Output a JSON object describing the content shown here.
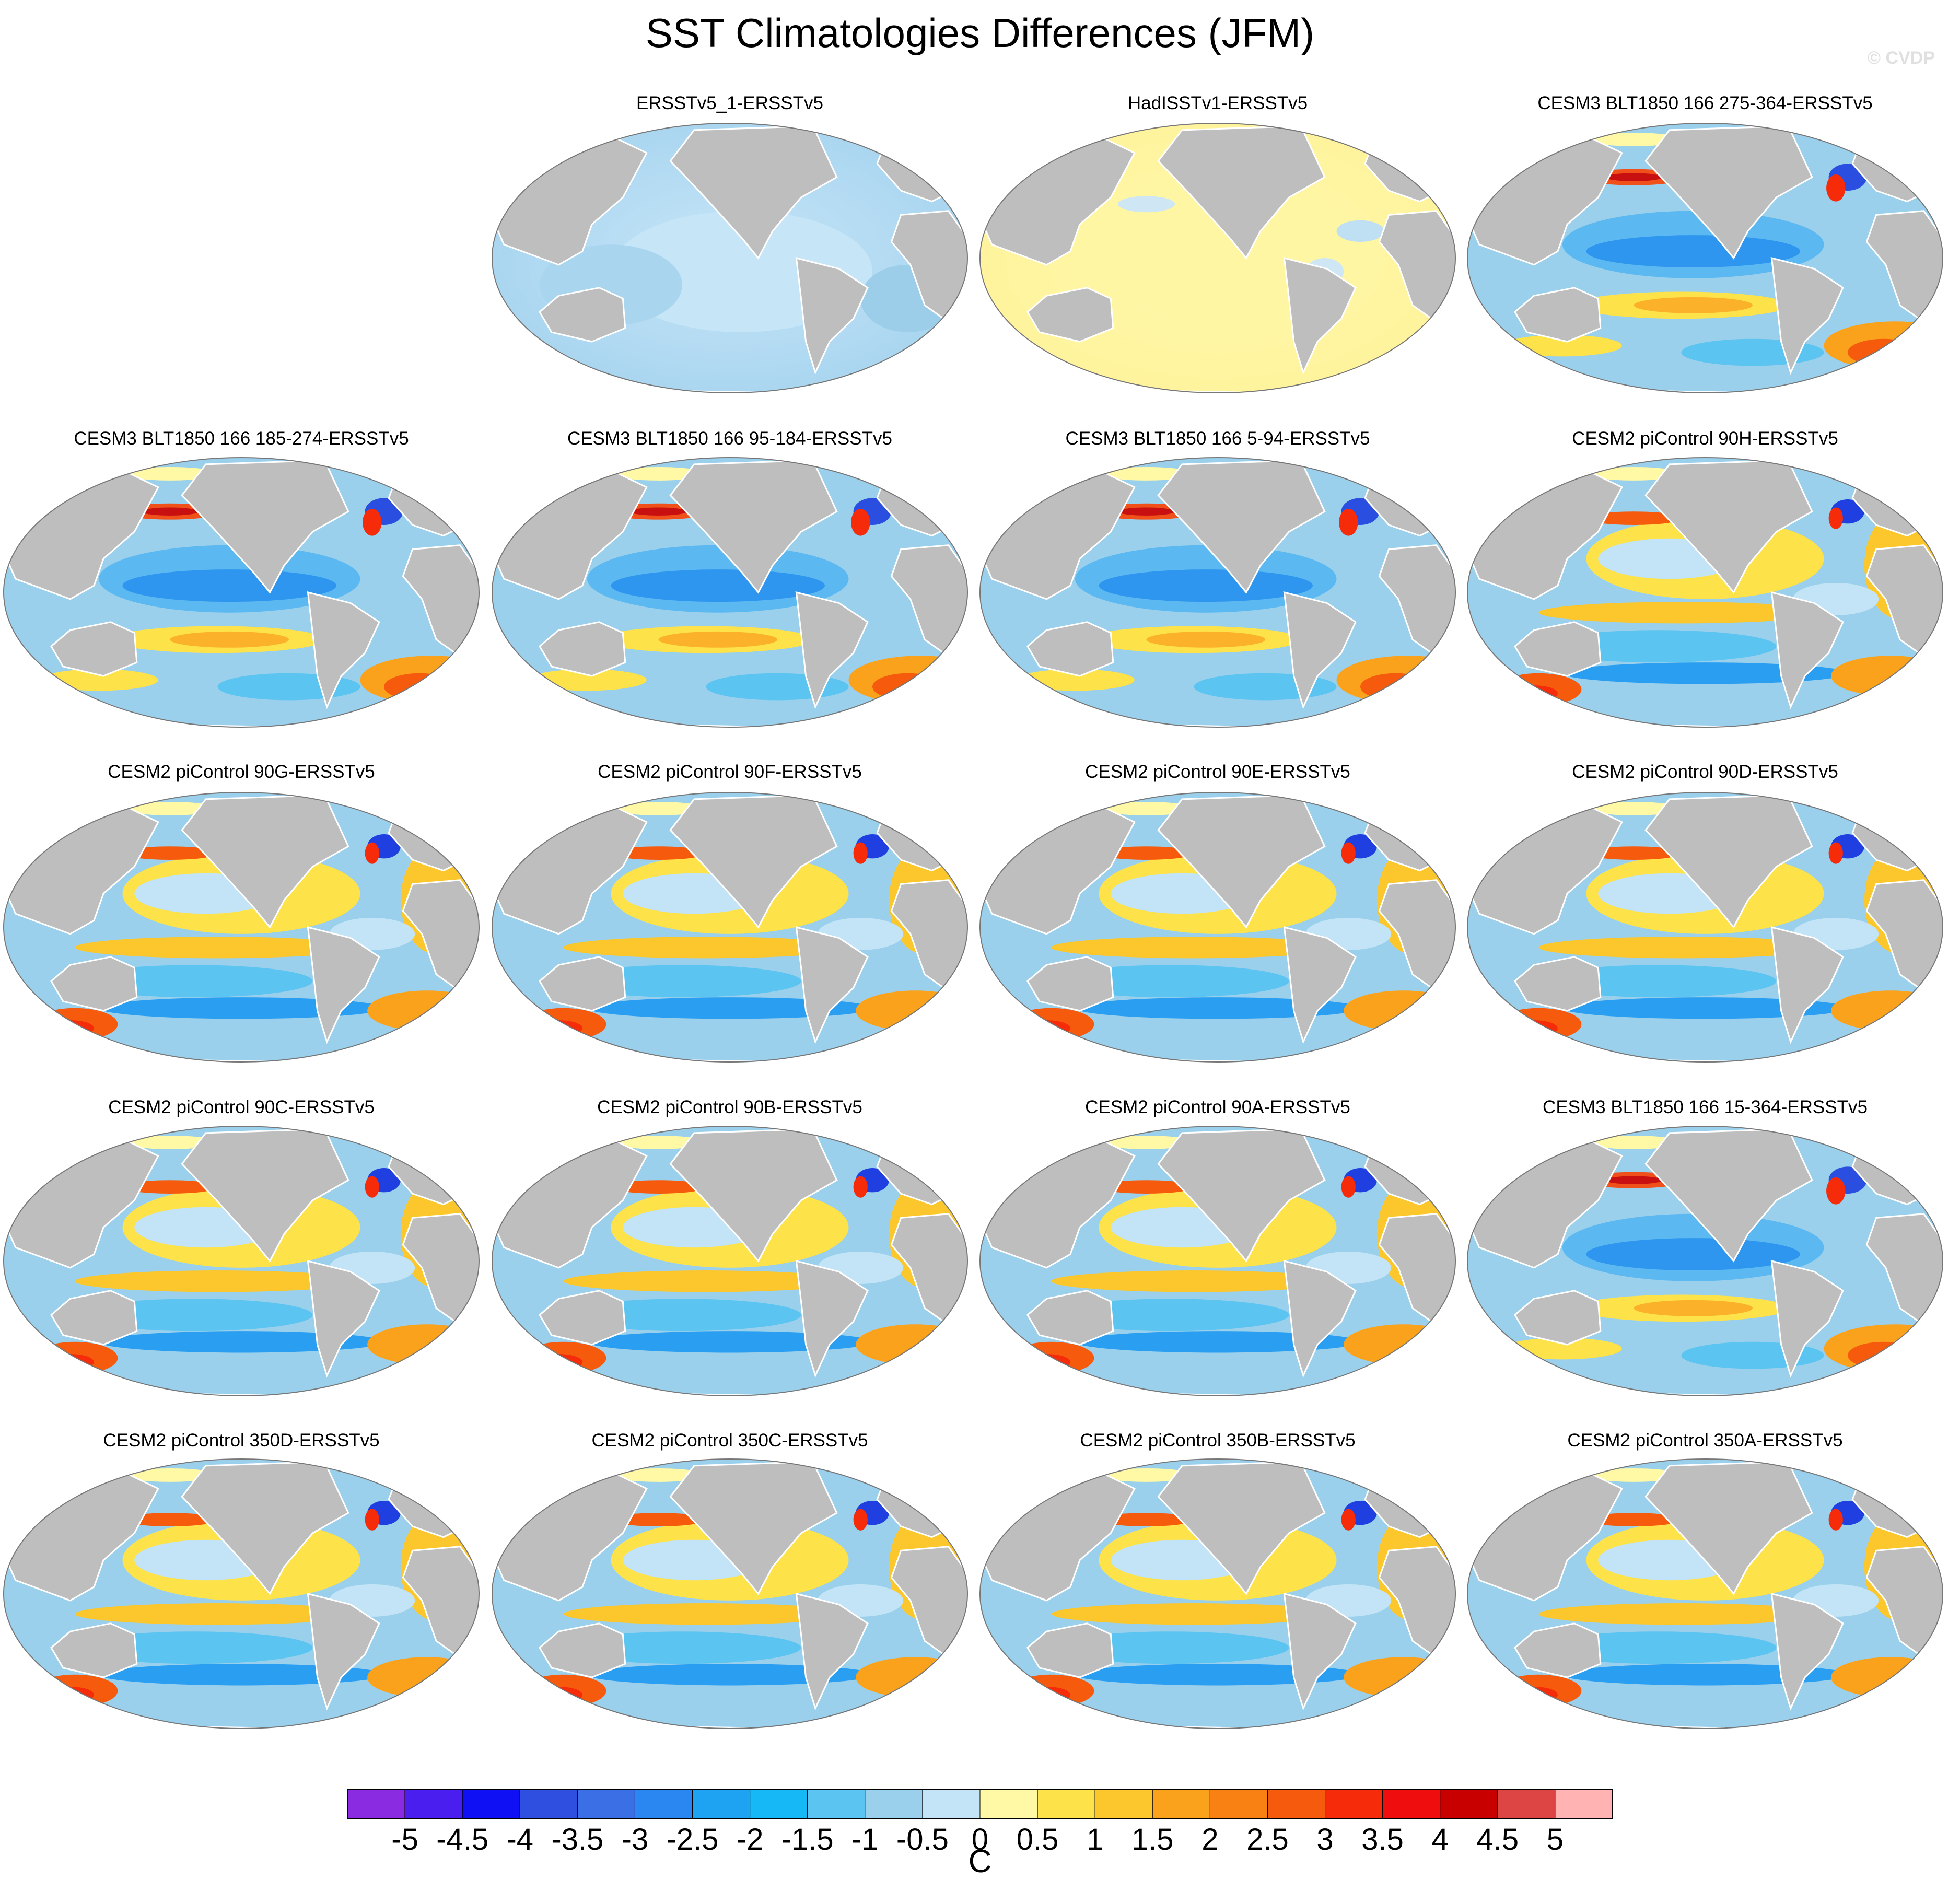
{
  "title": "SST Climatologies Differences (JFM)",
  "watermark": "© CVDP",
  "colors": {
    "land": "#bebebe",
    "coast": "#ffffff",
    "ocean_base_neg": "#bfe0f3",
    "ocean_base_pos": "#fff7a8"
  },
  "panels": [
    {
      "title": "ERSSTv5_1-ERSSTv5",
      "pattern": "uniform_neg"
    },
    {
      "title": "HadISSTv1-ERSSTv5",
      "pattern": "uniform_pos"
    },
    {
      "title": "CESM3 BLT1850 166 275-364-ERSSTv5",
      "pattern": "cesm3"
    },
    {
      "title": "CESM3 BLT1850 166 185-274-ERSSTv5",
      "pattern": "cesm3"
    },
    {
      "title": "CESM3 BLT1850 166 95-184-ERSSTv5",
      "pattern": "cesm3"
    },
    {
      "title": "CESM3 BLT1850 166 5-94-ERSSTv5",
      "pattern": "cesm3"
    },
    {
      "title": "CESM2 piControl 90H-ERSSTv5",
      "pattern": "cesm2"
    },
    {
      "title": "CESM2 piControl 90G-ERSSTv5",
      "pattern": "cesm2"
    },
    {
      "title": "CESM2 piControl 90F-ERSSTv5",
      "pattern": "cesm2"
    },
    {
      "title": "CESM2 piControl 90E-ERSSTv5",
      "pattern": "cesm2"
    },
    {
      "title": "CESM2 piControl 90D-ERSSTv5",
      "pattern": "cesm2"
    },
    {
      "title": "CESM2 piControl 90C-ERSSTv5",
      "pattern": "cesm2"
    },
    {
      "title": "CESM2 piControl 90B-ERSSTv5",
      "pattern": "cesm2"
    },
    {
      "title": "CESM2 piControl 90A-ERSSTv5",
      "pattern": "cesm2"
    },
    {
      "title": "CESM3 BLT1850 166 15-364-ERSSTv5",
      "pattern": "cesm3"
    },
    {
      "title": "CESM2 piControl 350D-ERSSTv5",
      "pattern": "cesm2"
    },
    {
      "title": "CESM2 piControl 350C-ERSSTv5",
      "pattern": "cesm2"
    },
    {
      "title": "CESM2 piControl 350B-ERSSTv5",
      "pattern": "cesm2"
    },
    {
      "title": "CESM2 piControl 350A-ERSSTv5",
      "pattern": "cesm2"
    }
  ],
  "colorbar": {
    "labels": [
      "-5",
      "-4.5",
      "-4",
      "-3.5",
      "-3",
      "-2.5",
      "-2",
      "-1.5",
      "-1",
      "-0.5",
      "0",
      "0.5",
      "1",
      "1.5",
      "2",
      "2.5",
      "3",
      "3.5",
      "4",
      "4.5",
      "5"
    ],
    "colors": [
      "#8a2be2",
      "#4b1ef0",
      "#1010f5",
      "#2e4fe0",
      "#3a6fe6",
      "#2a86f0",
      "#1ea2f2",
      "#16b8f5",
      "#5cc4f0",
      "#9ad0ec",
      "#c3e4f6",
      "#fff9a6",
      "#fde24a",
      "#fcc72c",
      "#fba21c",
      "#f98012",
      "#f65a0c",
      "#f52b0a",
      "#f00d0d",
      "#c80000",
      "#dd4444",
      "#ffb3b3"
    ],
    "units": "C"
  }
}
